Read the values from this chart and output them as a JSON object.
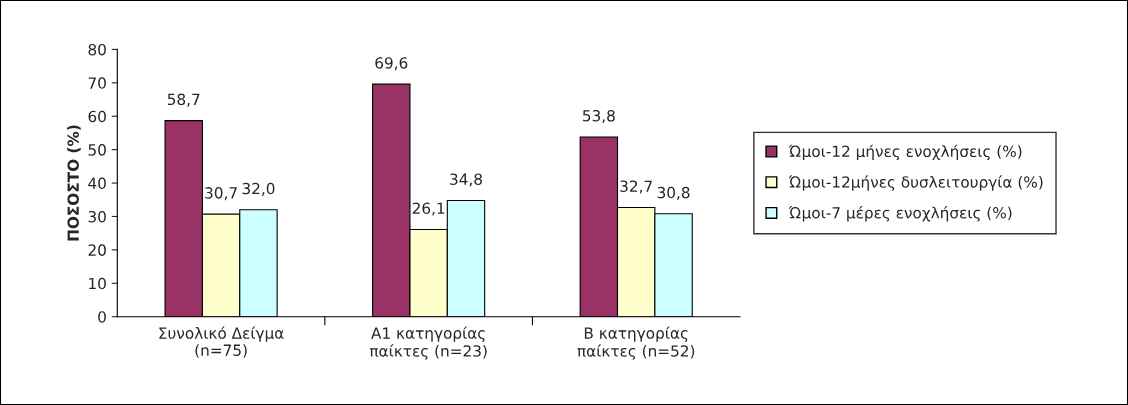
{
  "chart_data": {
    "type": "bar",
    "ylabel": "ΠΟΣΟΣΤΟ (%)",
    "categories": [
      "Συνολικό Δείγμα\n(n=75)",
      "Α1 κατηγορίας\nπαίκτες (n=23)",
      "Β κατηγορίας\nπαίκτες (n=52)"
    ],
    "series": [
      {
        "name": "Ώμοι-12 μήνες ενοχλήσεις (%)",
        "color": "#993366",
        "values": [
          58.7,
          69.6,
          53.8
        ],
        "value_labels": [
          "58,7",
          "69,6",
          "53,8"
        ]
      },
      {
        "name": "Ώμοι-12μήνες δυσλειτουργία (%)",
        "color": "#ffffcc",
        "values": [
          30.7,
          26.1,
          32.7
        ],
        "value_labels": [
          "30,7",
          "26,1",
          "32,7"
        ]
      },
      {
        "name": "Ώμοι-7 μέρες ενοχλήσεις (%)",
        "color": "#ccffff",
        "values": [
          32.0,
          34.8,
          30.8
        ],
        "value_labels": [
          "32,0",
          "34,8",
          "30,8"
        ]
      }
    ],
    "ylim": [
      0,
      80
    ],
    "yticks": [
      0,
      10,
      20,
      30,
      40,
      50,
      60,
      70,
      80
    ],
    "legend": "right",
    "grid": false
  }
}
